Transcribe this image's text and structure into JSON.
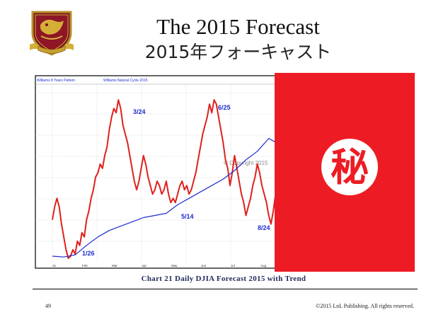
{
  "header": {
    "title": "The 2015 Forecast",
    "subtitle": "2015年フォーキャスト"
  },
  "chart_data": {
    "type": "line",
    "header_labels": [
      "Williams 8 Years Pattern",
      "Williams Natural Cycle 2015"
    ],
    "x_tick_labels": [
      "Ja",
      "Feb",
      "Mar",
      "Apr",
      "May",
      "Jun",
      "Jul",
      "Aug"
    ],
    "annotations": [
      "1/26",
      "3/24",
      "5/14",
      "6/25",
      "8/24"
    ],
    "watermark": "© Copyright 2015",
    "series": [
      {
        "color": "#e0211d",
        "x": [
          0,
          2,
          4,
          6,
          8,
          10,
          12,
          14,
          16,
          18,
          20,
          22,
          24,
          26,
          28,
          30,
          32,
          34,
          36,
          38,
          40,
          42,
          44,
          46,
          48,
          50,
          52,
          54,
          56,
          58,
          60,
          62,
          64,
          66,
          68,
          70,
          72,
          74,
          76,
          78,
          80,
          82,
          84,
          86,
          88,
          90,
          92,
          94,
          96,
          98,
          100,
          102,
          104,
          106,
          108,
          110,
          112,
          114,
          116,
          118,
          120,
          122,
          124,
          126,
          128,
          130,
          132,
          134,
          136,
          138,
          140,
          142,
          144,
          146,
          148,
          150,
          152,
          154,
          156,
          158,
          160,
          162,
          164,
          166,
          168,
          170,
          172,
          174,
          176,
          178,
          180,
          182,
          184,
          186,
          188,
          190,
          192,
          194,
          196,
          198,
          200,
          202,
          204,
          206,
          208,
          210,
          212,
          214,
          216,
          218,
          220,
          222,
          224,
          226,
          228,
          230,
          232,
          234,
          236,
          238,
          240,
          242,
          244,
          246,
          248,
          250,
          252,
          254,
          256,
          258,
          260,
          262,
          264,
          266,
          268,
          270,
          272,
          274,
          276,
          278,
          280,
          282,
          284,
          286,
          288,
          290,
          292,
          294,
          296,
          298,
          300,
          302,
          304,
          306,
          308,
          310,
          312
        ],
        "values": [
          9,
          12,
          14,
          12,
          8,
          5,
          2,
          0,
          0.5,
          2,
          1,
          4,
          3,
          6,
          5,
          9,
          11,
          14,
          16,
          19,
          20,
          22,
          21,
          24,
          26,
          30,
          33,
          35,
          34,
          37,
          35,
          31,
          29,
          27,
          24,
          21,
          18,
          16,
          18,
          21,
          24,
          22,
          19,
          17,
          15,
          16,
          18,
          17,
          15,
          16,
          18,
          15,
          13,
          14,
          13,
          15,
          17,
          18,
          16,
          17,
          15,
          16,
          18,
          20,
          23,
          26,
          29,
          31,
          33,
          36,
          34,
          37,
          36,
          33,
          30,
          27,
          23,
          21,
          17,
          20,
          24,
          21,
          18,
          15,
          13,
          10,
          12,
          14,
          17,
          19,
          22,
          20,
          17,
          15,
          13,
          10,
          8,
          11,
          15,
          19,
          17,
          14,
          12,
          10,
          8,
          6,
          5,
          3,
          6,
          8,
          10,
          7,
          5,
          4,
          6,
          8,
          10,
          12,
          15,
          13,
          11,
          13,
          16,
          19,
          22,
          24,
          25,
          27,
          29,
          30,
          32,
          34,
          35,
          33,
          30,
          28,
          25,
          22,
          20,
          18,
          16,
          18,
          17,
          15,
          13,
          11,
          10,
          11,
          9,
          8,
          10,
          12,
          14,
          13,
          12,
          11,
          10
        ],
        "draw_to_index": 131
      },
      {
        "color": "#1e2ccf",
        "x": [
          0,
          10,
          20,
          30,
          40,
          50,
          60,
          70,
          80,
          90,
          100,
          110,
          120,
          130,
          140,
          150,
          160,
          170,
          180,
          190,
          200,
          210,
          220,
          230,
          240,
          250,
          260,
          270,
          280,
          290,
          300,
          310
        ],
        "values": [
          0.5,
          0.3,
          0.8,
          3,
          5,
          6.5,
          7.5,
          8.5,
          9.5,
          10,
          10.5,
          12.5,
          14,
          15.5,
          17,
          18.5,
          20.5,
          23,
          25,
          28,
          26.5,
          25,
          23.5,
          21,
          19,
          18,
          17,
          16.5,
          16,
          15.5,
          15,
          14.5
        ]
      }
    ],
    "ylim": [
      0,
      40
    ],
    "xlim": [
      0,
      312
    ],
    "caption": "Chart 21 Daily DJIA Forecast 2015 with Trend"
  },
  "overlay": {
    "secret_char": "秘"
  },
  "footer": {
    "page_number": "49",
    "copyright": "©2015 LnL Publishing. All rights reserved."
  }
}
